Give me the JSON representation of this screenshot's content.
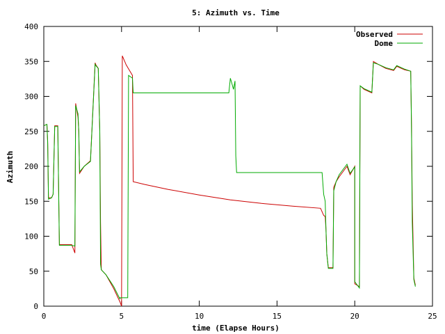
{
  "chart_data": {
    "type": "line",
    "title": "5: Azimuth vs. Time",
    "xlabel": "time (Elapse Hours)",
    "ylabel": "Azimuth",
    "xlim": [
      0,
      25
    ],
    "ylim": [
      0,
      400
    ],
    "xticks": [
      0,
      5,
      10,
      15,
      20,
      25
    ],
    "yticks": [
      0,
      50,
      100,
      150,
      200,
      250,
      300,
      350,
      400
    ],
    "grid": false,
    "legend_position": "top-right",
    "series": [
      {
        "name": "Observed",
        "color": "#cc0000",
        "points": [
          [
            0,
            258
          ],
          [
            0.2,
            260
          ],
          [
            0.25,
            235
          ],
          [
            0.3,
            155
          ],
          [
            0.5,
            155
          ],
          [
            0.6,
            160
          ],
          [
            0.7,
            258
          ],
          [
            0.9,
            258
          ],
          [
            1.0,
            88
          ],
          [
            1.8,
            88
          ],
          [
            2.0,
            76
          ],
          [
            2.05,
            290
          ],
          [
            2.2,
            270
          ],
          [
            2.25,
            250
          ],
          [
            2.3,
            190
          ],
          [
            2.6,
            200
          ],
          [
            3.0,
            208
          ],
          [
            3.3,
            348
          ],
          [
            3.35,
            345
          ],
          [
            3.5,
            340
          ],
          [
            3.6,
            250
          ],
          [
            3.65,
            120
          ],
          [
            3.7,
            52
          ],
          [
            4.0,
            45
          ],
          [
            4.5,
            25
          ],
          [
            4.9,
            6
          ],
          [
            5.0,
            0
          ],
          [
            5.05,
            358
          ],
          [
            5.3,
            345
          ],
          [
            5.7,
            330
          ],
          [
            5.75,
            178
          ],
          [
            6.5,
            174
          ],
          [
            8.0,
            167
          ],
          [
            10.0,
            159
          ],
          [
            12.0,
            152
          ],
          [
            14.0,
            147
          ],
          [
            16.0,
            143
          ],
          [
            17.8,
            140
          ],
          [
            18.0,
            130
          ],
          [
            18.1,
            128
          ],
          [
            18.15,
            110
          ],
          [
            18.2,
            75
          ],
          [
            18.3,
            55
          ],
          [
            18.6,
            55
          ],
          [
            18.65,
            170
          ],
          [
            18.8,
            178
          ],
          [
            19.0,
            185
          ],
          [
            19.5,
            200
          ],
          [
            19.7,
            188
          ],
          [
            20.0,
            200
          ],
          [
            20.0,
            32
          ],
          [
            20.3,
            28
          ],
          [
            20.35,
            315
          ],
          [
            20.6,
            310
          ],
          [
            21.1,
            305
          ],
          [
            21.2,
            350
          ],
          [
            21.5,
            346
          ],
          [
            22.0,
            340
          ],
          [
            22.5,
            337
          ],
          [
            22.7,
            343
          ],
          [
            23.0,
            340
          ],
          [
            23.2,
            338
          ],
          [
            23.6,
            336
          ],
          [
            23.65,
            260
          ],
          [
            23.7,
            150
          ],
          [
            23.8,
            40
          ],
          [
            23.9,
            30
          ]
        ]
      },
      {
        "name": "Dome",
        "color": "#00aa00",
        "points": [
          [
            0,
            258
          ],
          [
            0.2,
            260
          ],
          [
            0.25,
            232
          ],
          [
            0.3,
            153
          ],
          [
            0.5,
            155
          ],
          [
            0.6,
            160
          ],
          [
            0.7,
            257
          ],
          [
            0.9,
            257
          ],
          [
            1.0,
            87
          ],
          [
            1.8,
            87
          ],
          [
            2.0,
            86
          ],
          [
            2.05,
            287
          ],
          [
            2.2,
            275
          ],
          [
            2.25,
            250
          ],
          [
            2.3,
            192
          ],
          [
            2.6,
            200
          ],
          [
            3.0,
            207
          ],
          [
            3.3,
            346
          ],
          [
            3.35,
            344
          ],
          [
            3.5,
            340
          ],
          [
            3.6,
            250
          ],
          [
            3.65,
            60
          ],
          [
            3.7,
            52
          ],
          [
            4.0,
            45
          ],
          [
            4.5,
            28
          ],
          [
            4.9,
            10
          ],
          [
            4.9,
            12
          ],
          [
            5.4,
            12
          ],
          [
            5.45,
            330
          ],
          [
            5.7,
            326
          ],
          [
            5.75,
            305
          ],
          [
            8.0,
            305
          ],
          [
            10.0,
            305
          ],
          [
            11.9,
            305
          ],
          [
            12.0,
            326
          ],
          [
            12.1,
            318
          ],
          [
            12.2,
            310
          ],
          [
            12.3,
            322
          ],
          [
            12.35,
            215
          ],
          [
            12.4,
            191
          ],
          [
            14.0,
            191
          ],
          [
            16.0,
            191
          ],
          [
            17.9,
            191
          ],
          [
            18.0,
            160
          ],
          [
            18.1,
            150
          ],
          [
            18.15,
            110
          ],
          [
            18.2,
            75
          ],
          [
            18.3,
            54
          ],
          [
            18.6,
            54
          ],
          [
            18.65,
            165
          ],
          [
            18.8,
            178
          ],
          [
            19.0,
            188
          ],
          [
            19.5,
            203
          ],
          [
            19.7,
            190
          ],
          [
            20.0,
            199
          ],
          [
            20.0,
            35
          ],
          [
            20.3,
            26
          ],
          [
            20.35,
            315
          ],
          [
            20.6,
            311
          ],
          [
            21.1,
            306
          ],
          [
            21.2,
            348
          ],
          [
            21.5,
            346
          ],
          [
            22.0,
            341
          ],
          [
            22.5,
            338
          ],
          [
            22.7,
            344
          ],
          [
            23.0,
            341
          ],
          [
            23.2,
            339
          ],
          [
            23.6,
            336
          ],
          [
            23.65,
            255
          ],
          [
            23.7,
            120
          ],
          [
            23.8,
            38
          ],
          [
            23.9,
            28
          ]
        ]
      }
    ]
  }
}
